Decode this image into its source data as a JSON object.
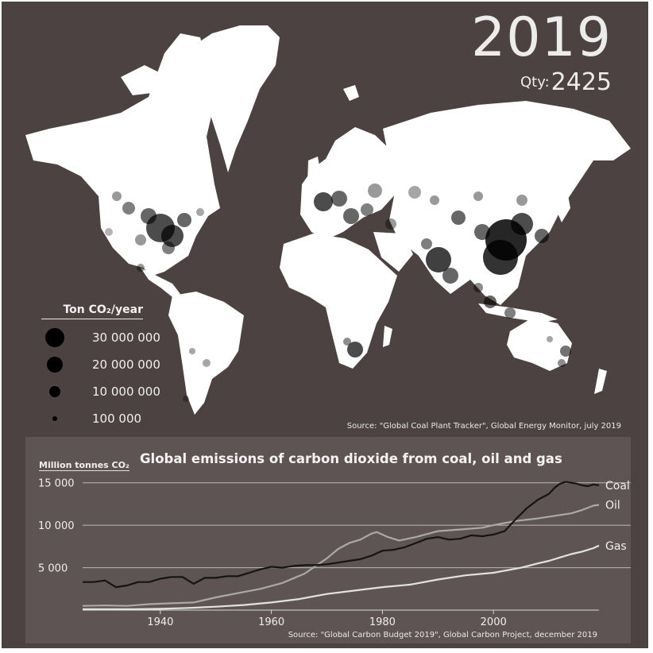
{
  "header": {
    "year": "2019",
    "qty_label": "Qty:",
    "qty_value": "2425"
  },
  "legend": {
    "title": "Ton CO₂/year",
    "items": [
      {
        "label": "30 000 000",
        "value": 30000000
      },
      {
        "label": "20 000 000",
        "value": 20000000
      },
      {
        "label": "10 000 000",
        "value": 10000000
      },
      {
        "label": "100 000",
        "value": 100000
      }
    ]
  },
  "map_source": "Source: \"Global Coal Plant Tracker\", Global Energy Monitor, july 2019",
  "chart_data": {
    "type": "line",
    "title": "Global emissions of carbon dioxide from coal, oil and gas",
    "ylabel": "Million tonnes CO₂",
    "xlim": [
      1926,
      2019
    ],
    "ylim": [
      0,
      16000
    ],
    "xticks": [
      1940,
      1960,
      1980,
      2000
    ],
    "yticks": [
      5000,
      10000,
      15000
    ],
    "ytick_labels": [
      "5 000",
      "10 000",
      "15 000"
    ],
    "series": [
      {
        "name": "Coal",
        "color": "#141414",
        "x": [
          1926,
          1928,
          1930,
          1932,
          1934,
          1936,
          1938,
          1940,
          1942,
          1944,
          1946,
          1948,
          1950,
          1952,
          1954,
          1956,
          1958,
          1960,
          1962,
          1964,
          1966,
          1968,
          1970,
          1972,
          1974,
          1976,
          1978,
          1980,
          1982,
          1984,
          1986,
          1988,
          1990,
          1992,
          1994,
          1996,
          1998,
          2000,
          2002,
          2004,
          2006,
          2008,
          2010,
          2011,
          2012,
          2013,
          2014,
          2015,
          2016,
          2017,
          2018,
          2019
        ],
        "y": [
          3300,
          3300,
          3500,
          2700,
          2900,
          3300,
          3300,
          3700,
          3900,
          3900,
          3100,
          3800,
          3800,
          4000,
          4000,
          4400,
          4800,
          5100,
          5000,
          5200,
          5300,
          5300,
          5400,
          5600,
          5800,
          6000,
          6400,
          7000,
          7100,
          7400,
          7900,
          8400,
          8600,
          8300,
          8400,
          8800,
          8700,
          8900,
          9300,
          10700,
          12000,
          13000,
          13700,
          14400,
          14900,
          15100,
          15000,
          14900,
          14700,
          14600,
          14800,
          14700
        ]
      },
      {
        "name": "Oil",
        "color": "#a9a9a9",
        "x": [
          1926,
          1930,
          1934,
          1938,
          1942,
          1946,
          1950,
          1954,
          1958,
          1962,
          1966,
          1970,
          1972,
          1974,
          1976,
          1978,
          1979,
          1981,
          1983,
          1986,
          1990,
          1994,
          1998,
          2000,
          2004,
          2008,
          2010,
          2012,
          2014,
          2016,
          2018,
          2019
        ],
        "y": [
          500,
          550,
          500,
          700,
          800,
          900,
          1500,
          2000,
          2500,
          3200,
          4300,
          6100,
          7200,
          7900,
          8300,
          9000,
          9200,
          8600,
          8200,
          8600,
          9300,
          9500,
          9700,
          10000,
          10500,
          10800,
          11000,
          11200,
          11400,
          11800,
          12300,
          12400
        ]
      },
      {
        "name": "Gas",
        "color": "#e2e2e2",
        "x": [
          1926,
          1930,
          1935,
          1940,
          1945,
          1950,
          1955,
          1960,
          1965,
          1970,
          1975,
          1980,
          1985,
          1990,
          1995,
          2000,
          2005,
          2008,
          2010,
          2012,
          2014,
          2016,
          2018,
          2019
        ],
        "y": [
          100,
          100,
          100,
          150,
          250,
          400,
          600,
          900,
          1300,
          1900,
          2300,
          2700,
          3000,
          3600,
          4100,
          4400,
          5000,
          5500,
          5800,
          6200,
          6600,
          6900,
          7300,
          7600
        ]
      }
    ]
  },
  "chart_source": "Source: \"Global Carbon Budget 2019\", Global Carbon Project, december 2019"
}
